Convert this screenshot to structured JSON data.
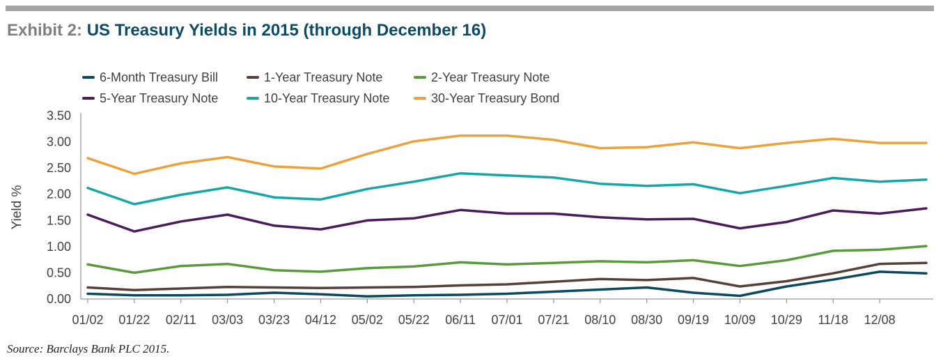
{
  "header": {
    "title_prefix": "Exhibit 2:",
    "title_main": "US Treasury Yields in 2015 (through December 16)"
  },
  "legend": [
    {
      "label": "6-Month Treasury Bill"
    },
    {
      "label": "1-Year Treasury Note"
    },
    {
      "label": "2-Year Treasury Note"
    },
    {
      "label": "5-Year Treasury Note"
    },
    {
      "label": "10-Year Treasury Note"
    },
    {
      "label": "30-Year Treasury Bond"
    }
  ],
  "footer": {
    "source": "Source: Barclays Bank PLC 2015."
  },
  "chart_data": {
    "type": "line",
    "title": "US Treasury Yields in 2015 (through December 16)",
    "ylabel": "Yield %",
    "xlabel": "",
    "ylim": [
      0,
      3.5
    ],
    "ytick_labels": [
      "0.00",
      "0.50",
      "1.00",
      "1.50",
      "2.00",
      "2.50",
      "3.00",
      "3.50"
    ],
    "x": [
      "01/02",
      "01/22",
      "02/11",
      "03/03",
      "03/23",
      "04/12",
      "05/02",
      "05/22",
      "06/11",
      "07/01",
      "07/21",
      "08/10",
      "08/30",
      "09/19",
      "10/09",
      "10/29",
      "11/18",
      "12/08",
      "12/16"
    ],
    "xtick_labels": [
      "01/02",
      "01/22",
      "02/11",
      "03/03",
      "03/23",
      "04/12",
      "05/02",
      "05/22",
      "06/11",
      "07/01",
      "07/21",
      "08/10",
      "08/30",
      "09/19",
      "10/09",
      "10/29",
      "11/18",
      "12/08"
    ],
    "grid": false,
    "legend_position": "top-left",
    "series": [
      {
        "name": "6-Month Treasury Bill",
        "color": "#0b4a5e",
        "values": [
          0.1,
          0.07,
          0.07,
          0.08,
          0.12,
          0.09,
          0.05,
          0.07,
          0.08,
          0.1,
          0.14,
          0.18,
          0.22,
          0.12,
          0.06,
          0.24,
          0.37,
          0.52,
          0.49
        ]
      },
      {
        "name": "1-Year Treasury Note",
        "color": "#574038",
        "values": [
          0.22,
          0.17,
          0.2,
          0.23,
          0.22,
          0.21,
          0.22,
          0.23,
          0.26,
          0.28,
          0.33,
          0.38,
          0.36,
          0.4,
          0.24,
          0.34,
          0.49,
          0.67,
          0.69
        ]
      },
      {
        "name": "2-Year Treasury Note",
        "color": "#5b9a3c",
        "values": [
          0.66,
          0.5,
          0.63,
          0.67,
          0.55,
          0.52,
          0.59,
          0.62,
          0.7,
          0.66,
          0.69,
          0.72,
          0.7,
          0.74,
          0.63,
          0.74,
          0.92,
          0.94,
          1.01
        ]
      },
      {
        "name": "5-Year Treasury Note",
        "color": "#4a1d5a",
        "values": [
          1.61,
          1.29,
          1.48,
          1.61,
          1.4,
          1.33,
          1.5,
          1.54,
          1.7,
          1.63,
          1.63,
          1.56,
          1.52,
          1.53,
          1.35,
          1.47,
          1.69,
          1.63,
          1.73
        ]
      },
      {
        "name": "10-Year Treasury Note",
        "color": "#16a6a6",
        "values": [
          2.12,
          1.81,
          1.99,
          2.13,
          1.94,
          1.9,
          2.1,
          2.24,
          2.4,
          2.36,
          2.32,
          2.2,
          2.16,
          2.19,
          2.02,
          2.16,
          2.31,
          2.24,
          2.28
        ]
      },
      {
        "name": "30-Year Treasury Bond",
        "color": "#eba23a",
        "values": [
          2.69,
          2.39,
          2.59,
          2.71,
          2.53,
          2.49,
          2.77,
          3.01,
          3.12,
          3.12,
          3.04,
          2.88,
          2.9,
          2.99,
          2.88,
          2.98,
          3.06,
          2.98,
          2.98
        ]
      }
    ]
  }
}
